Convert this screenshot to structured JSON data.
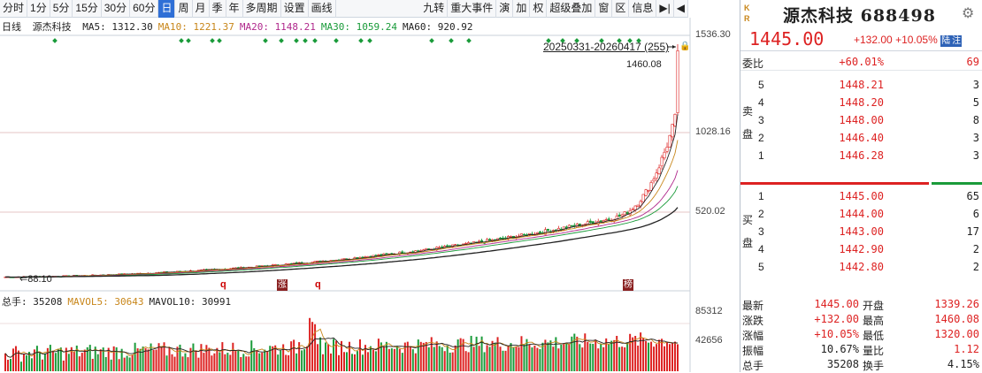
{
  "toolbar": {
    "left": [
      "分时",
      "1分",
      "5分",
      "15分",
      "30分",
      "60分",
      "日",
      "周",
      "月",
      "季",
      "年",
      "多周期",
      "设置",
      "画线"
    ],
    "active_index": 6,
    "right": [
      "九转",
      "重大事件",
      "演",
      "加",
      "权",
      "超级叠加",
      "窗",
      "区",
      "信息",
      "▶|",
      "◀"
    ]
  },
  "chart": {
    "period": "日线",
    "stock": "源杰科技",
    "ma": [
      {
        "label": "MA5: 1312.30",
        "color": "#222222"
      },
      {
        "label": "MA10: 1221.37",
        "color": "#c8861a"
      },
      {
        "label": "MA20: 1148.21",
        "color": "#b0288c"
      },
      {
        "label": "MA30: 1059.24",
        "color": "#1a9b3a"
      },
      {
        "label": "MA60: 920.92",
        "color": "#222222"
      }
    ],
    "range_label": "20250331-20260417 (255)",
    "lock_icon": "🔒",
    "high_label": "1460.08",
    "low_label": "88.10",
    "axis_prices": [
      "1536.30",
      "1028.16",
      "520.02"
    ],
    "markers": [
      "q",
      "涨",
      "q",
      "榜"
    ],
    "vol_legend": [
      {
        "label": "总手: 35208",
        "color": "#222222"
      },
      {
        "label": "MAVOL5: 30643",
        "color": "#c8861a"
      },
      {
        "label": "MAVOL10: 30991",
        "color": "#222222"
      }
    ],
    "vol_axis": [
      "85312",
      "42656"
    ]
  },
  "panel": {
    "kr": "K\nR",
    "name": "源杰科技 688498",
    "price": "1445.00",
    "change": "+132.00",
    "change_pct": "+10.05%",
    "tag1": "陆",
    "tag2": "注",
    "weibi_label": "委比",
    "weibi_value": "+60.01%",
    "weibi_count": "69",
    "sell_side": "卖\n\n盘",
    "buy_side": "买\n\n盘",
    "sells": [
      {
        "lvl": "5",
        "price": "1448.21",
        "vol": "3"
      },
      {
        "lvl": "4",
        "price": "1448.20",
        "vol": "5"
      },
      {
        "lvl": "3",
        "price": "1448.00",
        "vol": "8"
      },
      {
        "lvl": "2",
        "price": "1446.40",
        "vol": "3"
      },
      {
        "lvl": "1",
        "price": "1446.28",
        "vol": "3"
      }
    ],
    "buys": [
      {
        "lvl": "1",
        "price": "1445.00",
        "vol": "65"
      },
      {
        "lvl": "2",
        "price": "1444.00",
        "vol": "6"
      },
      {
        "lvl": "3",
        "price": "1443.00",
        "vol": "17"
      },
      {
        "lvl": "4",
        "price": "1442.90",
        "vol": "2"
      },
      {
        "lvl": "5",
        "price": "1442.80",
        "vol": "2"
      }
    ],
    "stats": [
      {
        "l1": "最新",
        "v1": "1445.00",
        "c1": "red",
        "l2": "开盘",
        "v2": "1339.26",
        "c2": "red"
      },
      {
        "l1": "涨跌",
        "v1": "+132.00",
        "c1": "red",
        "l2": "最高",
        "v2": "1460.08",
        "c2": "red"
      },
      {
        "l1": "涨幅",
        "v1": "+10.05%",
        "c1": "red",
        "l2": "最低",
        "v2": "1320.00",
        "c2": "red"
      },
      {
        "l1": "振幅",
        "v1": "10.67%",
        "c1": "",
        "l2": "量比",
        "v2": "1.12",
        "c2": "red"
      },
      {
        "l1": "总手",
        "v1": "35208",
        "c1": "",
        "l2": "换手",
        "v2": "4.15%",
        "c2": ""
      }
    ]
  }
}
